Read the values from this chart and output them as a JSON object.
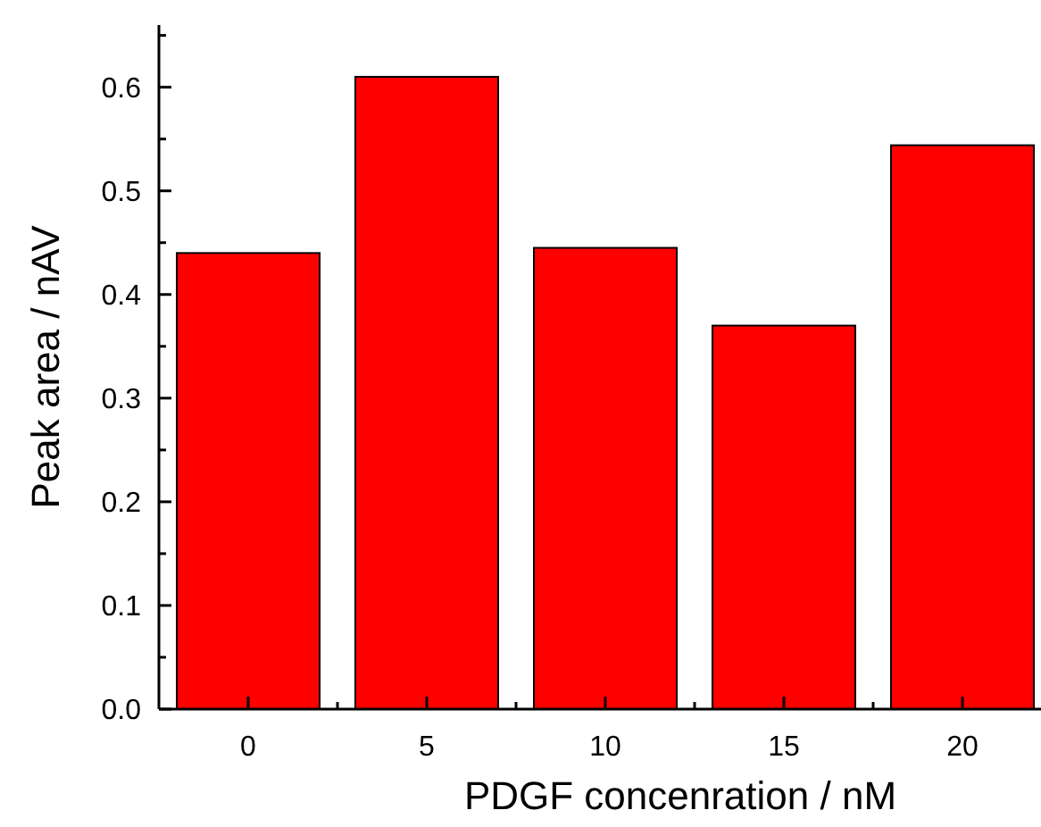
{
  "chart_data": {
    "type": "bar",
    "xlabel": "PDGF concenration / nM",
    "ylabel": "Peak area / nAV",
    "categories": [
      "0",
      "5",
      "10",
      "15",
      "20"
    ],
    "values": [
      0.44,
      0.61,
      0.445,
      0.37,
      0.544
    ],
    "color": "#ff0000",
    "ylim": [
      0,
      0.66
    ],
    "yticks": [
      {
        "value": 0,
        "label": "0.0"
      },
      {
        "value": 0.05,
        "label": null
      },
      0.1,
      {
        "value": 0.15,
        "label": null
      },
      0.2,
      {
        "value": 0.25,
        "label": null
      },
      0.3,
      {
        "value": 0.35,
        "label": null
      },
      0.4,
      {
        "value": 0.45,
        "label": null
      },
      0.5,
      {
        "value": 0.55,
        "label": null
      },
      0.6,
      {
        "value": 0.65,
        "label": null
      }
    ],
    "grid": false
  }
}
